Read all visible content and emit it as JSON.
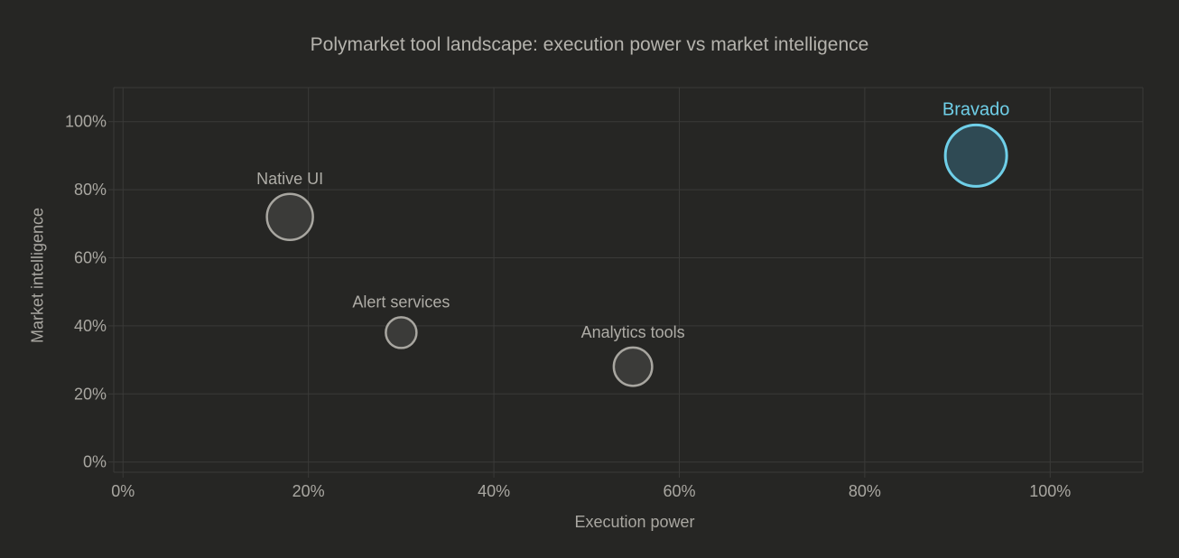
{
  "chart_data": {
    "type": "scatter",
    "subtype": "bubble",
    "title": "Polymarket tool landscape: execution power vs market intelligence",
    "xlabel": "Execution power",
    "ylabel": "Market intelligence",
    "xlim": [
      -1,
      110
    ],
    "ylim": [
      -3,
      110
    ],
    "x_ticks": [
      0,
      20,
      40,
      60,
      80,
      100
    ],
    "y_ticks": [
      0,
      20,
      40,
      60,
      80,
      100
    ],
    "x_tick_labels": [
      "0%",
      "20%",
      "40%",
      "60%",
      "80%",
      "100%"
    ],
    "y_tick_labels": [
      "0%",
      "20%",
      "40%",
      "60%",
      "80%",
      "100%"
    ],
    "grid": true,
    "legend": "none",
    "points": [
      {
        "label": "Native UI",
        "x": 18,
        "y": 72,
        "size": 3,
        "highlight": false
      },
      {
        "label": "Alert services",
        "x": 30,
        "y": 38,
        "size": 2,
        "highlight": false
      },
      {
        "label": "Analytics tools",
        "x": 55,
        "y": 28,
        "size": 2.5,
        "highlight": false
      },
      {
        "label": "Bravado",
        "x": 92,
        "y": 90,
        "size": 4,
        "highlight": true
      }
    ],
    "colors": {
      "background": "#262624",
      "grid": "#3a3a38",
      "default_fill": "#3b3b39",
      "default_stroke": "#a8a6a0",
      "default_label": "#aeaca6",
      "highlight_fill": "#2f4a54",
      "highlight_stroke": "#6fcfe8",
      "highlight_label": "#6fcfe8",
      "tick_label": "#a9a7a1",
      "title": "#b5b3ad"
    }
  }
}
